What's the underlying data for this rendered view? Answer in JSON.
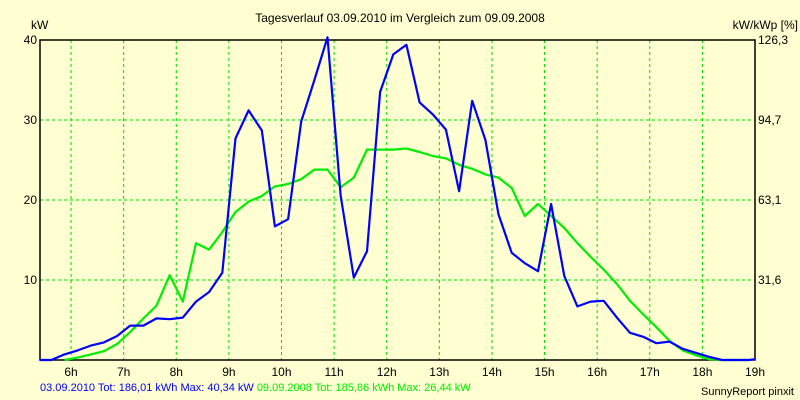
{
  "chart_data": {
    "type": "line",
    "title": "Tagesverlauf 03.09.2010 im Vergleich zum 09.09.2008",
    "ylabel": "kW",
    "ylabel_right": "kW/kWp [%]",
    "xlim": [
      5.41,
      19.0
    ],
    "ylim": [
      0,
      40
    ],
    "grid": true,
    "x_ticks": [
      6,
      7,
      8,
      9,
      10,
      11,
      12,
      13,
      14,
      15,
      16,
      17,
      18,
      19
    ],
    "x_tick_labels": [
      "6h",
      "7h",
      "8h",
      "9h",
      "10h",
      "11h",
      "12h",
      "13h",
      "14h",
      "15h",
      "16h",
      "17h",
      "18h",
      "19h"
    ],
    "y_ticks": [
      10,
      20,
      30,
      40
    ],
    "y_tick_labels": [
      "10",
      "20",
      "30",
      "40"
    ],
    "y_right_tick_labels": [
      "31,6",
      "63,1",
      "94,7",
      "126,3"
    ],
    "series": [
      {
        "name": "03.09.2010",
        "color": "#0000FF",
        "summary": "03.09.2010 Tot: 186,01 kWh Max: 40,34 kW",
        "x": [
          5.41,
          5.625,
          5.875,
          6.125,
          6.375,
          6.625,
          6.875,
          7.125,
          7.375,
          7.625,
          7.875,
          8.125,
          8.375,
          8.625,
          8.875,
          9.125,
          9.375,
          9.625,
          9.875,
          10.125,
          10.375,
          10.625,
          10.875,
          11.125,
          11.375,
          11.625,
          11.875,
          12.125,
          12.375,
          12.625,
          12.875,
          13.125,
          13.375,
          13.625,
          13.875,
          14.125,
          14.375,
          14.625,
          14.875,
          15.125,
          15.375,
          15.625,
          15.875,
          16.125,
          16.375,
          16.625,
          16.875,
          17.125,
          17.375,
          17.625,
          17.875,
          18.125,
          18.375,
          18.875,
          19.0
        ],
        "values": [
          0,
          0,
          0.7,
          1.2,
          1.8,
          2.2,
          3.0,
          4.3,
          4.3,
          5.2,
          5.1,
          5.3,
          7.3,
          8.5,
          10.9,
          27.7,
          31.2,
          28.7,
          16.7,
          17.6,
          29.8,
          35.0,
          40.34,
          20.5,
          10.3,
          13.6,
          33.5,
          38.2,
          39.4,
          32.2,
          30.7,
          28.8,
          21.1,
          32.4,
          27.5,
          18.2,
          13.4,
          12.1,
          11.1,
          19.5,
          10.5,
          6.7,
          7.3,
          7.4,
          5.3,
          3.4,
          2.9,
          2.1,
          2.3,
          1.4,
          0.9,
          0.4,
          0,
          0,
          0.1
        ]
      },
      {
        "name": "09.09.2008",
        "color": "#00EE00",
        "summary": "09.09.2008 Tot: 185,86 kWh Max: 26,44 kW",
        "x": [
          5.875,
          6.125,
          6.375,
          6.625,
          6.875,
          7.125,
          7.375,
          7.625,
          7.875,
          8.125,
          8.375,
          8.625,
          8.875,
          9.125,
          9.375,
          9.625,
          9.875,
          10.125,
          10.375,
          10.625,
          10.875,
          11.125,
          11.375,
          11.625,
          11.875,
          12.125,
          12.375,
          12.625,
          12.875,
          13.125,
          13.375,
          13.625,
          13.875,
          14.125,
          14.375,
          14.625,
          14.875,
          15.125,
          15.375,
          15.625,
          15.875,
          16.125,
          16.375,
          16.625,
          16.875,
          17.125,
          17.375,
          17.625,
          17.875,
          18.125,
          18.375,
          18.875
        ],
        "values": [
          0,
          0.3,
          0.7,
          1.1,
          2.0,
          3.5,
          5.2,
          6.8,
          10.6,
          7.3,
          14.6,
          13.8,
          16.0,
          18.5,
          19.8,
          20.5,
          21.7,
          22.0,
          22.6,
          23.8,
          23.8,
          21.6,
          22.8,
          26.3,
          26.3,
          26.3,
          26.44,
          26.0,
          25.5,
          25.2,
          24.4,
          23.9,
          23.2,
          22.8,
          21.5,
          18.0,
          19.5,
          18.0,
          16.5,
          14.6,
          12.9,
          11.3,
          9.5,
          7.4,
          5.7,
          4.1,
          2.4,
          1.2,
          0.6,
          0.1,
          0,
          0
        ]
      }
    ],
    "credit": "SunnyReport pinxit"
  },
  "colors": {
    "grid": "#00DD00",
    "frame": "#000000"
  }
}
